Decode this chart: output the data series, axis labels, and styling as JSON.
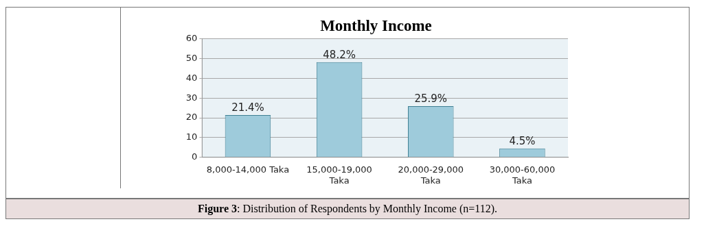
{
  "chart_data": {
    "type": "bar",
    "title": "Monthly Income",
    "categories": [
      "8,000-14,000 Taka",
      "15,000-19,000 Taka",
      "20,000-29,000 Taka",
      "30,000-60,000 Taka"
    ],
    "values": [
      21.4,
      48.2,
      25.9,
      4.5
    ],
    "value_labels": [
      "21.4%",
      "48.2%",
      "25.9%",
      "4.5%"
    ],
    "color": "#9ecbdb",
    "ylim": [
      0,
      60
    ],
    "yticks": [
      0,
      10,
      20,
      30,
      40,
      50,
      60
    ],
    "grid": "y",
    "legend": false,
    "annotations": [
      "Figure 3: Distribution of Respondents by Monthly Income (n=112)."
    ]
  }
}
